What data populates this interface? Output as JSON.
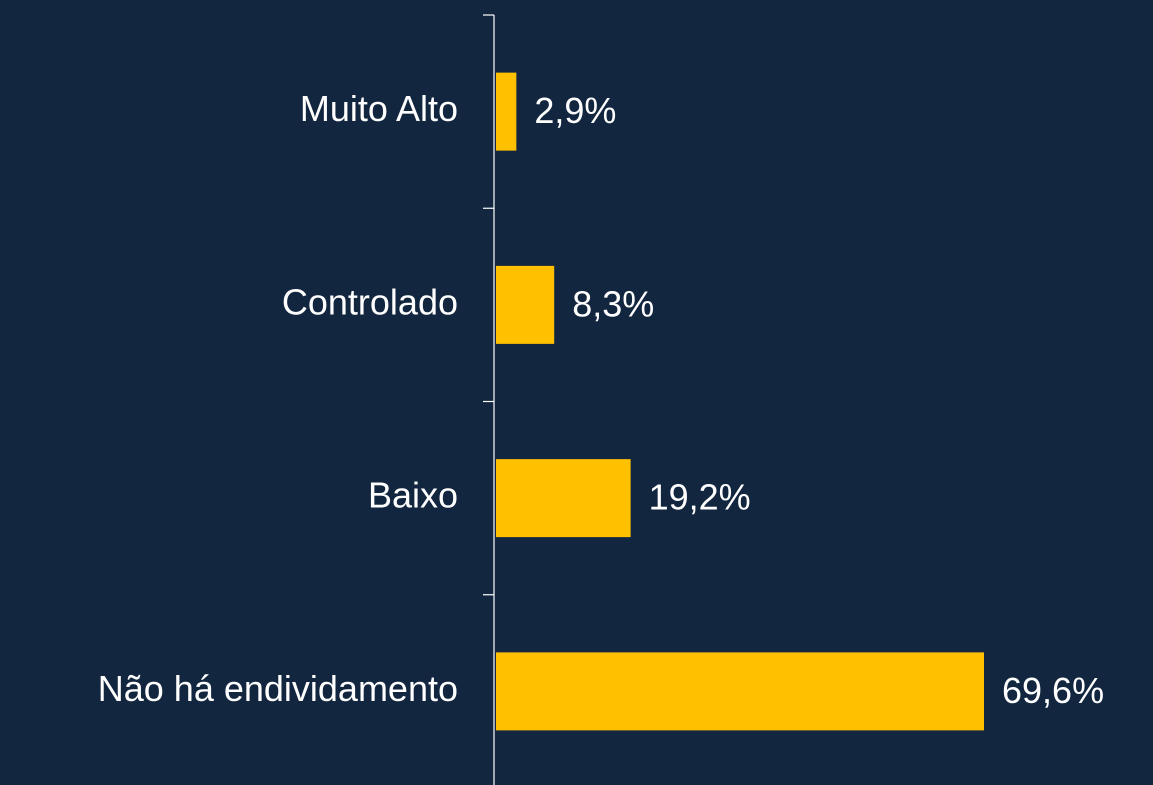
{
  "chart_data": {
    "type": "bar",
    "orientation": "horizontal",
    "categories": [
      "Muito Alto",
      "Controlado",
      "Baixo",
      "Não há endividamento"
    ],
    "values": [
      2.9,
      8.3,
      19.2,
      69.6
    ],
    "value_labels": [
      "2,9%",
      "8,3%",
      "19,2%",
      "69,6%"
    ],
    "color": "#ffc000"
  }
}
